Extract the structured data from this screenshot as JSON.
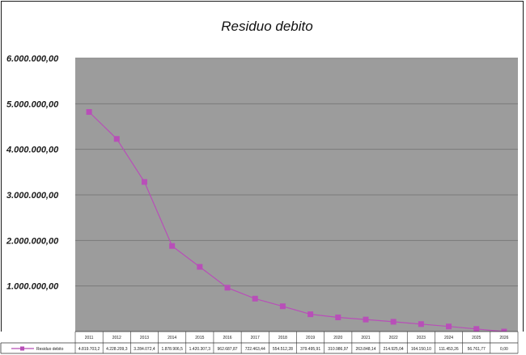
{
  "chart_data": {
    "type": "line",
    "title": "Residuo debito",
    "xlabel": "",
    "ylabel": "",
    "ylim": [
      0,
      6000000
    ],
    "y_tick_labels": [
      "6.000.000,00",
      "5.000.000,00",
      "4.000.000,00",
      "3.000.000,00",
      "2.000.000,00",
      "1.000.000,00",
      "-"
    ],
    "y_ticks": [
      6000000,
      5000000,
      4000000,
      3000000,
      2000000,
      1000000,
      0
    ],
    "grid": true,
    "legend": "in data table (left)",
    "categories": [
      "2011",
      "2012",
      "2013",
      "2014",
      "2015",
      "2016",
      "2017",
      "2018",
      "2019",
      "2020",
      "2021",
      "2022",
      "2023",
      "2024",
      "2025",
      "2026"
    ],
    "series": [
      {
        "name": "Residuo debito",
        "color": "#b84fb8",
        "values": [
          4819703.2,
          4228209.3,
          3284072.4,
          1878906.5,
          1420307.3,
          962687.87,
          722463.44,
          554512.28,
          379495.91,
          310986.97,
          263848.14,
          214925.04,
          164150.1,
          111453.26,
          56761.77,
          0
        ],
        "value_labels": [
          "4.819.703,2",
          "4.228.209,3",
          "3.284.072,4",
          "1.878.906,5",
          "1.420.307,3",
          "962.687,87",
          "722.463,44",
          "554.512,28",
          "379.495,91",
          "310.986,97",
          "263.848,14",
          "214.925,04",
          "164.150,10",
          "111.453,26",
          "56.761,77",
          "0,00"
        ]
      }
    ]
  }
}
